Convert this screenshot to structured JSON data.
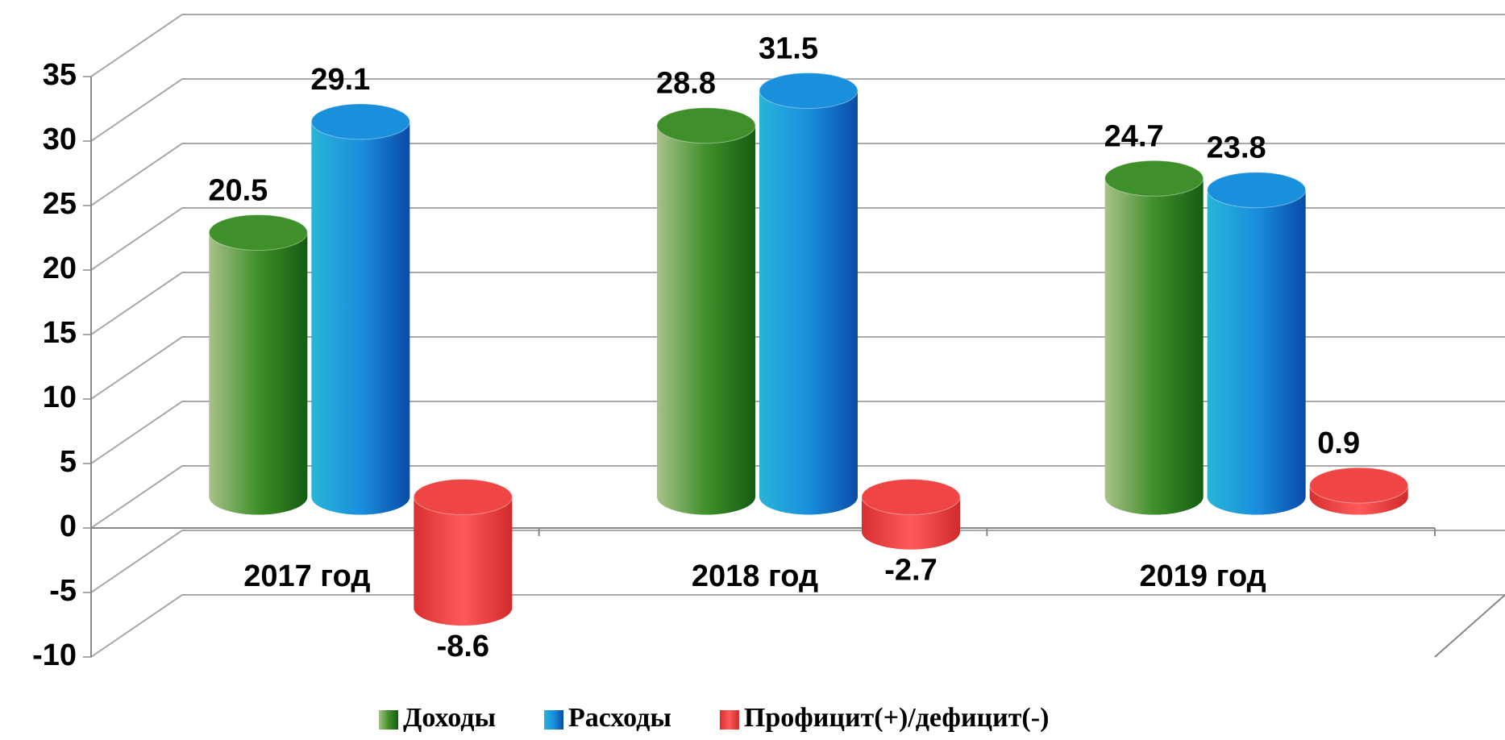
{
  "chart_data": {
    "type": "bar3d",
    "categories": [
      "2017 год",
      "2018 год",
      "2019 год"
    ],
    "series": [
      {
        "name": "Доходы",
        "color": "#3f8f2a",
        "values": [
          20.5,
          28.8,
          24.7
        ]
      },
      {
        "name": "Расходы",
        "color": "#1a8fdc",
        "values": [
          29.1,
          31.5,
          23.8
        ]
      },
      {
        "name": "Профицит(+)/дефицит(-)",
        "color": "#f04545",
        "values": [
          -8.6,
          -2.7,
          0.9
        ]
      }
    ],
    "ylim": [
      -10,
      35
    ],
    "yticks": [
      -10,
      -5,
      0,
      5,
      10,
      15,
      20,
      25,
      30,
      35
    ],
    "grid": true,
    "legend": "bottom"
  }
}
